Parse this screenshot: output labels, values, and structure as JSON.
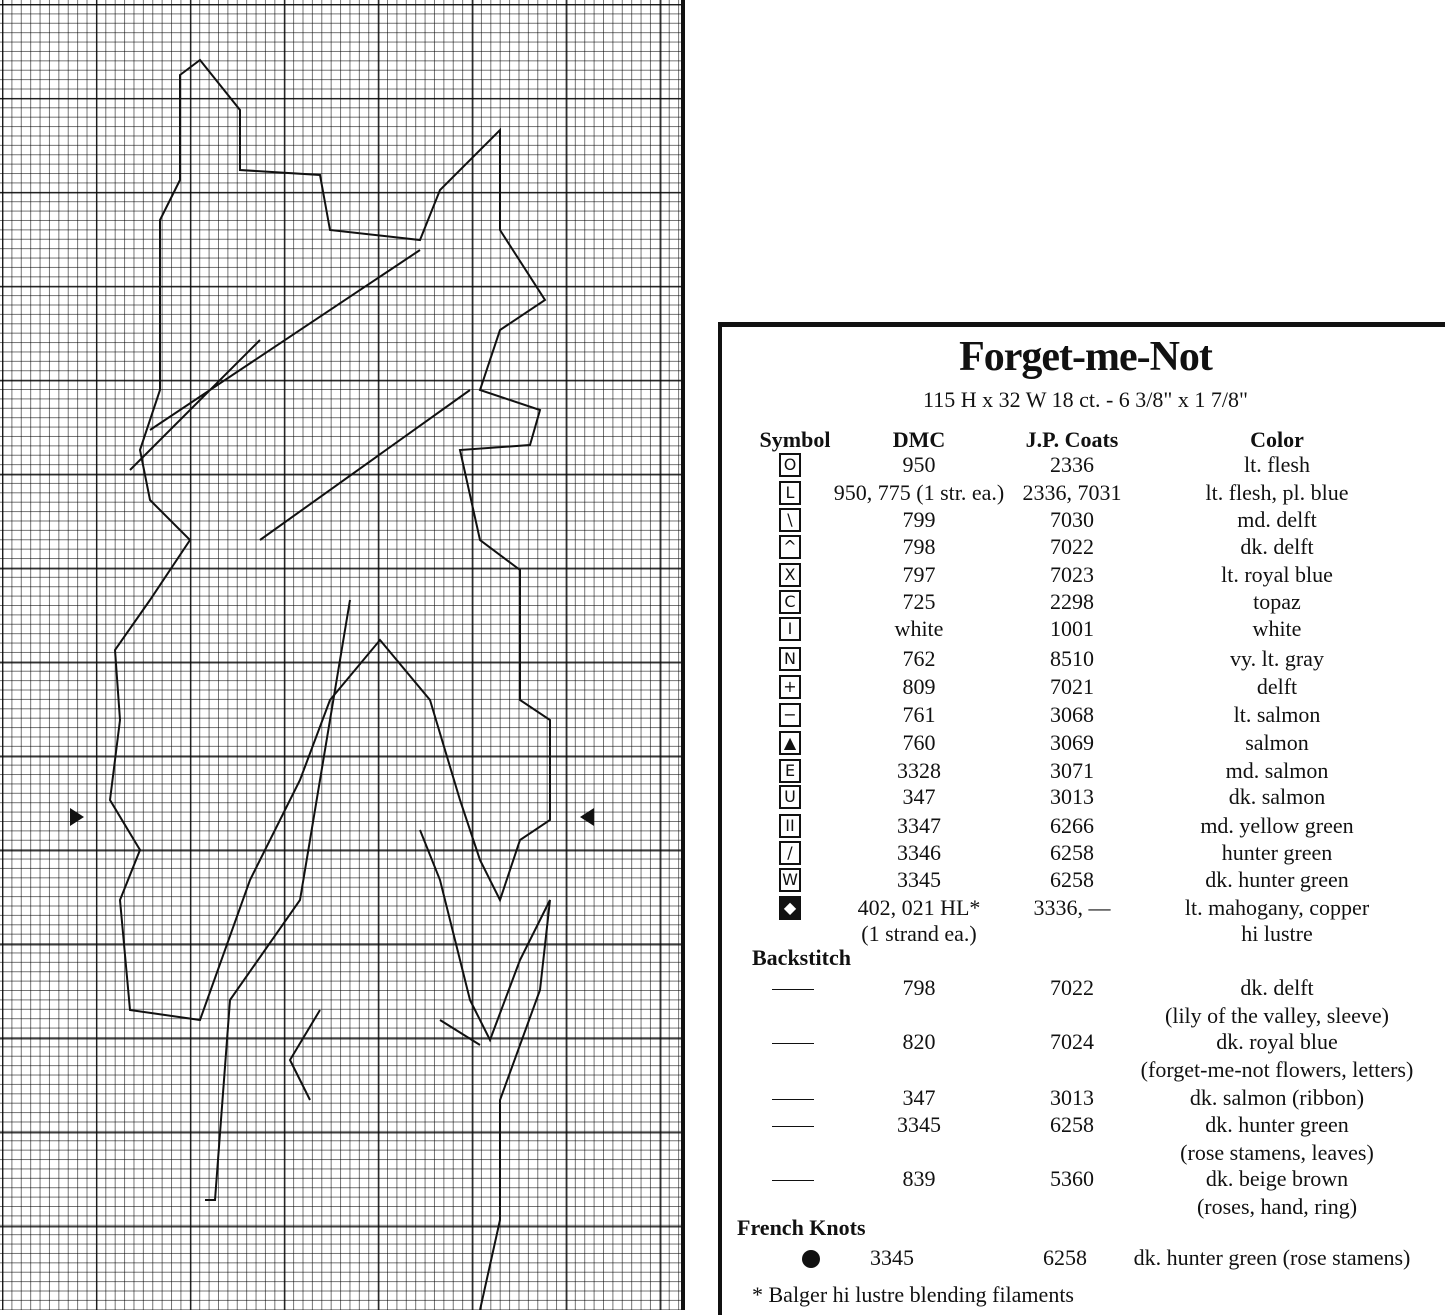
{
  "title": "Forget-me-Not",
  "subtitle": "115 H x 32 W   18 ct. - 6 3/8\" x 1 7/8\"",
  "headers": {
    "symbol": "Symbol",
    "dmc": "DMC",
    "jp": "J.P. Coats",
    "color": "Color"
  },
  "symbols": [
    {
      "icon": "circle",
      "glyph": "O",
      "dmc": "950",
      "jp": "2336",
      "color": "lt. flesh"
    },
    {
      "icon": "l-shape",
      "glyph": "L",
      "dmc": "950, 775 (1 str. ea.)",
      "jp": "2336, 7031",
      "color": "lt. flesh, pl. blue"
    },
    {
      "icon": "backslash",
      "glyph": "\\",
      "dmc": "799",
      "jp": "7030",
      "color": "md. delft"
    },
    {
      "icon": "caret",
      "glyph": "^",
      "dmc": "798",
      "jp": "7022",
      "color": "dk. delft"
    },
    {
      "icon": "x",
      "glyph": "X",
      "dmc": "797",
      "jp": "7023",
      "color": "lt. royal blue"
    },
    {
      "icon": "c-shape",
      "glyph": "C",
      "dmc": "725",
      "jp": "2298",
      "color": "topaz"
    },
    {
      "icon": "vertical-bar",
      "glyph": "I",
      "dmc": "white",
      "jp": "1001",
      "color": "white"
    },
    {
      "icon": "n",
      "glyph": "N",
      "dmc": "762",
      "jp": "8510",
      "color": "vy. lt. gray"
    },
    {
      "icon": "plus",
      "glyph": "+",
      "dmc": "809",
      "jp": "7021",
      "color": "delft"
    },
    {
      "icon": "minus",
      "glyph": "−",
      "dmc": "761",
      "jp": "3068",
      "color": "lt. salmon"
    },
    {
      "icon": "triangle",
      "glyph": "▲",
      "dmc": "760",
      "jp": "3069",
      "color": "salmon"
    },
    {
      "icon": "e",
      "glyph": "E",
      "dmc": "3328",
      "jp": "3071",
      "color": "md. salmon"
    },
    {
      "icon": "u",
      "glyph": "U",
      "dmc": "347",
      "jp": "3013",
      "color": "dk. salmon"
    },
    {
      "icon": "double-bar",
      "glyph": "II",
      "dmc": "3347",
      "jp": "6266",
      "color": "md. yellow green"
    },
    {
      "icon": "slash",
      "glyph": "/",
      "dmc": "3346",
      "jp": "6258",
      "color": "hunter green"
    },
    {
      "icon": "w",
      "glyph": "W",
      "dmc": "3345",
      "jp": "6258",
      "color": "dk. hunter green"
    },
    {
      "icon": "diamond",
      "glyph": "◆",
      "dmc": "402, 021 HL*",
      "dmc2": "(1 strand ea.)",
      "jp": "3336, —",
      "color": "lt. mahogany, copper",
      "color2": "hi lustre"
    }
  ],
  "backstitch_label": "Backstitch",
  "backstitch": [
    {
      "dmc": "798",
      "jp": "7022",
      "color": "dk. delft",
      "note": "(lily of the valley, sleeve)"
    },
    {
      "dmc": "820",
      "jp": "7024",
      "color": "dk. royal blue",
      "note": "(forget-me-not flowers, letters)"
    },
    {
      "dmc": "347",
      "jp": "3013",
      "color": "dk. salmon (ribbon)"
    },
    {
      "dmc": "3345",
      "jp": "6258",
      "color": "dk. hunter green",
      "note": "(rose stamens, leaves)"
    },
    {
      "dmc": "839",
      "jp": "5360",
      "color": "dk. beige brown",
      "note": "(roses, hand, ring)"
    }
  ],
  "french_knots_label": "French Knots",
  "french_knots": [
    {
      "dmc": "3345",
      "jp": "6258",
      "color": "dk. hunter green (rose stamens)"
    }
  ],
  "footnote": "* Balger hi lustre blending filaments"
}
